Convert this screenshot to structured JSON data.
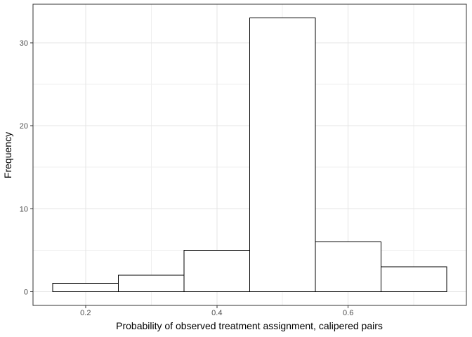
{
  "chart_data": {
    "type": "bar",
    "style": "histogram",
    "title": "",
    "xlabel": "Probability of observed treatment assignment, calipered pairs",
    "ylabel": "Frequency",
    "bin_centers": [
      0.2,
      0.3,
      0.4,
      0.5,
      0.6,
      0.7
    ],
    "bin_width": 0.1,
    "values": [
      1,
      2,
      5,
      33,
      6,
      3
    ],
    "x_ticks": [
      0.2,
      0.4,
      0.6
    ],
    "x_tick_labels": [
      "0.2",
      "0.4",
      "0.6"
    ],
    "x_minor_gridlines": [
      0.3,
      0.5,
      0.7
    ],
    "y_ticks": [
      0,
      10,
      20,
      30
    ],
    "y_tick_labels": [
      "0",
      "10",
      "20",
      "30"
    ],
    "y_minor_gridlines": [
      5,
      15,
      25
    ],
    "xlim": [
      0.12,
      0.78
    ],
    "ylim": [
      -1.65,
      34.65
    ],
    "grid": true,
    "legend": false
  },
  "colors": {
    "figure_background": "#FFFFFF",
    "panel_background": "#FFFFFF",
    "panel_border": "#333333",
    "axis_tick": "#333333",
    "grid_major": "#E4E4E4",
    "grid_minor": "#EFEFEF",
    "bar_fill": "#FFFFFF",
    "bar_stroke": "#000000",
    "tick_label": "#4D4D4D",
    "axis_title": "#000000"
  }
}
